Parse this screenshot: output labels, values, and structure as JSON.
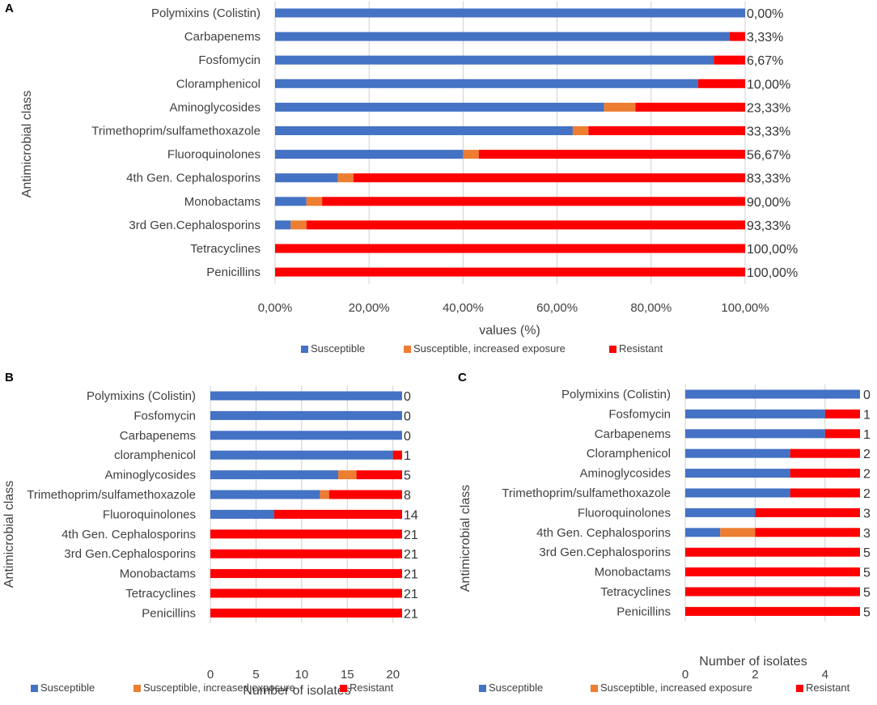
{
  "colors": {
    "susceptible": "#4472C4",
    "increased": "#ED7D31",
    "resistant": "#FF0000"
  },
  "chart_data": [
    {
      "panel": "A",
      "type": "bar",
      "orientation": "horizontal",
      "stacked": true,
      "ylabel": "Antimicrobial class",
      "xlabel": "values (%)",
      "xlim": [
        0,
        100
      ],
      "xticks": [
        0,
        20,
        40,
        60,
        80,
        100
      ],
      "tick_labels": [
        "0,00%",
        "20,00%",
        "40,00%",
        "60,00%",
        "80,00%",
        "100,00%"
      ],
      "categories": [
        "Polymixins (Colistin)",
        "Carbapenems",
        "Fosfomycin",
        "Cloramphenicol",
        "Aminoglycosides",
        "Trimethoprim/sulfamethoxazole",
        "Fluoroquinolones",
        "4th Gen. Cephalosporins",
        "Monobactams",
        "3rd Gen.Cephalosporins",
        "Tetracyclines",
        "Penicillins"
      ],
      "series": [
        {
          "name": "Susceptible",
          "key": "susceptible",
          "values": [
            100,
            96.67,
            93.33,
            90,
            70,
            63.33,
            40,
            13.33,
            6.67,
            3.33,
            0,
            0
          ]
        },
        {
          "name": "Susceptible, increased exposure",
          "key": "increased",
          "values": [
            0,
            0,
            0,
            0,
            6.67,
            3.34,
            3.33,
            3.34,
            3.33,
            3.34,
            0,
            0
          ]
        },
        {
          "name": "Resistant",
          "key": "resistant",
          "values": [
            0,
            3.33,
            6.67,
            10,
            23.33,
            33.33,
            56.67,
            83.33,
            90,
            93.33,
            100,
            100
          ]
        }
      ],
      "data_labels": [
        "0,00%",
        "3,33%",
        "6,67%",
        "10,00%",
        "23,33%",
        "33,33%",
        "56,67%",
        "83,33%",
        "90,00%",
        "93,33%",
        "100,00%",
        "100,00%"
      ],
      "legend": [
        "Susceptible",
        "Susceptible, increased exposure",
        "Resistant"
      ]
    },
    {
      "panel": "B",
      "type": "bar",
      "orientation": "horizontal",
      "stacked": true,
      "ylabel": "Antimicrobial class",
      "xlabel": "Number of isolates",
      "xlim": [
        0,
        21
      ],
      "xticks": [
        0,
        5,
        10,
        15,
        20
      ],
      "tick_labels": [
        "0",
        "5",
        "10",
        "15",
        "20"
      ],
      "categories": [
        "Polymixins (Colistin)",
        "Fosfomycin",
        "Carbapenems",
        "cloramphenicol",
        "Aminoglycosides",
        "Trimethoprim/sulfamethoxazole",
        "Fluoroquinolones",
        "4th Gen. Cephalosporins",
        "3rd Gen.Cephalosporins",
        "Monobactams",
        "Tetracyclines",
        "Penicillins"
      ],
      "series": [
        {
          "name": "Susceptible",
          "key": "susceptible",
          "values": [
            21,
            21,
            21,
            20,
            14,
            12,
            7,
            0,
            0,
            0,
            0,
            0
          ]
        },
        {
          "name": "Susceptible, increased exposure",
          "key": "increased",
          "values": [
            0,
            0,
            0,
            0,
            2,
            1,
            0,
            0,
            0,
            0,
            0,
            0
          ]
        },
        {
          "name": "Resistant",
          "key": "resistant",
          "values": [
            0,
            0,
            0,
            1,
            5,
            8,
            14,
            21,
            21,
            21,
            21,
            21
          ]
        }
      ],
      "data_labels": [
        "0",
        "0",
        "0",
        "1",
        "5",
        "8",
        "14",
        "21",
        "21",
        "21",
        "21",
        "21"
      ],
      "legend": [
        "Susceptible",
        "Susceptible, increased exposure",
        "Resistant"
      ]
    },
    {
      "panel": "C",
      "type": "bar",
      "orientation": "horizontal",
      "stacked": true,
      "ylabel": "Antimicrobial class",
      "xlabel": "Number of isolates",
      "xlim": [
        0,
        5
      ],
      "xticks": [
        0,
        2,
        4
      ],
      "tick_labels": [
        "0",
        "2",
        "4"
      ],
      "categories": [
        "Polymixins (Colistin)",
        "Fosfomycin",
        "Carbapenems",
        "Cloramphenicol",
        "Aminoglycosides",
        "Trimethoprim/sulfamethoxazole",
        "Fluoroquinolones",
        "4th Gen. Cephalosporins",
        "3rd Gen.Cephalosporins",
        "Monobactams",
        "Tetracyclines",
        "Penicillins"
      ],
      "series": [
        {
          "name": "Susceptible",
          "key": "susceptible",
          "values": [
            5,
            4,
            4,
            3,
            3,
            3,
            2,
            1,
            0,
            0,
            0,
            0
          ]
        },
        {
          "name": "Susceptible, increased exposure",
          "key": "increased",
          "values": [
            0,
            0,
            0,
            0,
            0,
            0,
            0,
            1,
            0,
            0,
            0,
            0
          ]
        },
        {
          "name": "Resistant",
          "key": "resistant",
          "values": [
            0,
            1,
            1,
            2,
            2,
            2,
            3,
            3,
            5,
            5,
            5,
            5
          ]
        }
      ],
      "data_labels": [
        "0",
        "1",
        "1",
        "2",
        "2",
        "2",
        "3",
        "3",
        "5",
        "5",
        "5",
        "5"
      ],
      "legend": [
        "Susceptible",
        "Susceptible, increased exposure",
        "Resistant"
      ]
    }
  ]
}
